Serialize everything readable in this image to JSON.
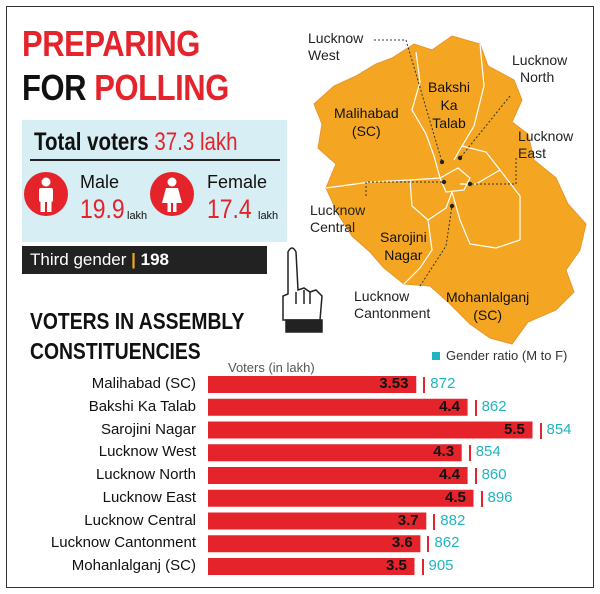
{
  "header": {
    "line1": "PREPARING",
    "line2a": "FOR",
    "line2b": "POLLING"
  },
  "totals": {
    "label": "Total voters",
    "value": "37.3 lakh",
    "male_label": "Male",
    "male_value": "19.9",
    "male_unit": "lakh",
    "female_label": "Female",
    "female_value": "17.4",
    "female_unit": "lakh",
    "third_label": "Third gender",
    "third_sep": "|",
    "third_value": "198"
  },
  "map_labels": {
    "lucknow_west": [
      "Lucknow",
      "West"
    ],
    "lucknow_north": [
      "Lucknow",
      "North"
    ],
    "lucknow_east": [
      "Lucknow",
      "East"
    ],
    "lucknow_central": [
      "Lucknow",
      "Central"
    ],
    "lucknow_cantonment": [
      "Lucknow",
      "Cantonment"
    ],
    "malihabad": [
      "Malihabad",
      "(SC)"
    ],
    "bakshi": [
      "Bakshi",
      "Ka",
      "Talab"
    ],
    "sarojini": [
      "Sarojini",
      "Nagar"
    ],
    "mohanlalganj": [
      "Mohanlalganj",
      "(SC)"
    ]
  },
  "section": {
    "line1": "VOTERS IN ASSEMBLY",
    "line2": "CONSTITUENCIES"
  },
  "legend": {
    "ratio_label": "Gender ratio (M to F)"
  },
  "colors": {
    "red": "#e4232b",
    "teal": "#1fb4bf",
    "map": "#f4a622"
  },
  "chart_data": {
    "type": "bar",
    "orientation": "horizontal",
    "xlabel": "Voters (in lakh)",
    "categories": [
      "Malihabad (SC)",
      "Bakshi Ka Talab",
      "Sarojini Nagar",
      "Lucknow West",
      "Lucknow North",
      "Lucknow East",
      "Lucknow Central",
      "Lucknow Cantonment",
      "Mohanlalganj (SC)"
    ],
    "values": [
      3.53,
      4.4,
      5.5,
      4.3,
      4.4,
      4.5,
      3.7,
      3.6,
      3.5
    ],
    "value_labels": [
      "3.53",
      "4.4",
      "5.5",
      "4.3",
      "4.4",
      "4.5",
      "3.7",
      "3.6",
      "3.5"
    ],
    "gender_ratio": [
      "872",
      "862",
      "854",
      "854",
      "860",
      "896",
      "882",
      "862",
      "905"
    ]
  }
}
